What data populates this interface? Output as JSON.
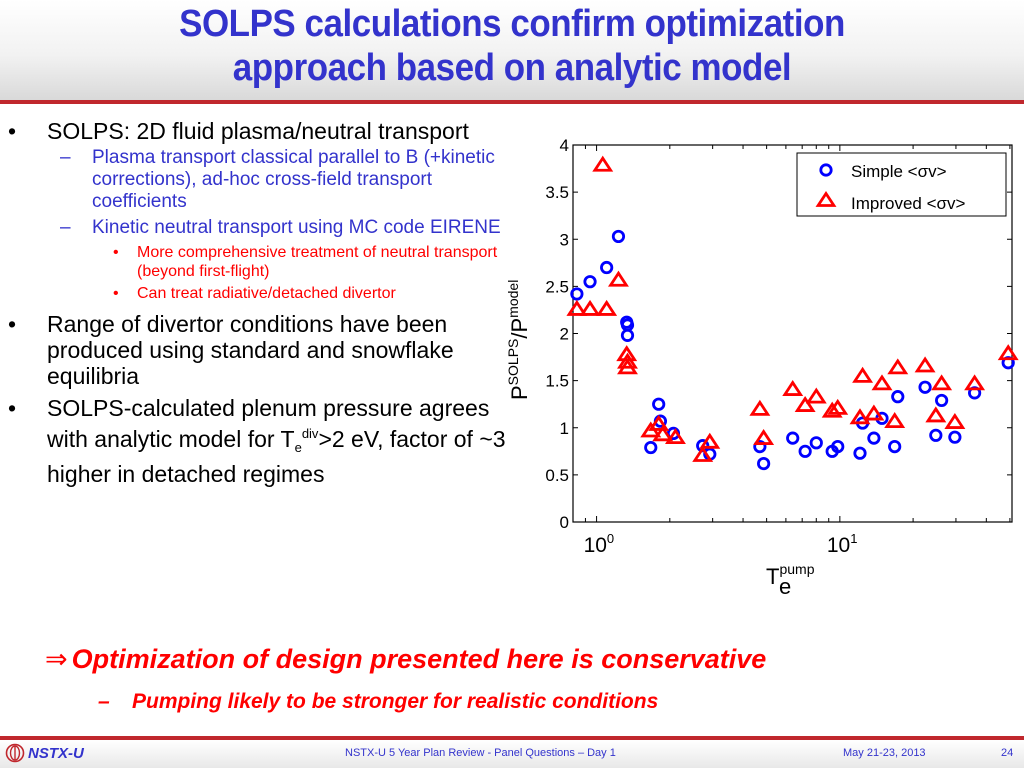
{
  "slide": {
    "title_line1": "SOLPS calculations confirm optimization",
    "title_line2": "approach based on analytic model",
    "bullets": [
      {
        "level": 1,
        "mark": "•",
        "text": "SOLPS: 2D fluid plasma/neutral transport"
      },
      {
        "level": 2,
        "mark": "–",
        "text": "Plasma transport classical parallel to B (+kinetic corrections), ad-hoc cross-field transport coefficients"
      },
      {
        "level": 2,
        "mark": "–",
        "text": "Kinetic neutral transport using MC code EIRENE"
      },
      {
        "level": 3,
        "mark": "•",
        "text": "More comprehensive treatment of neutral transport (beyond first-flight)"
      },
      {
        "level": 3,
        "mark": "•",
        "text": "Can treat radiative/detached divertor"
      },
      {
        "level": 1,
        "mark": "•",
        "text": "Range of divertor conditions have been produced using standard and snowflake equilibria"
      }
    ],
    "last_bullet": {
      "mark": "•",
      "text_before": "SOLPS-calculated plenum pressure agrees with analytic model for T",
      "sub": "e",
      "sup": "div",
      "text_after": ">2 eV, factor of ~3 higher in detached regimes"
    },
    "conclusion_arrow": "⇒",
    "conclusion": "Optimization of design presented here is conservative",
    "subconclusion_mark": "–",
    "subconclusion": "Pumping likely to be stronger for realistic conditions"
  },
  "footer": {
    "logo_text": "NSTX-U",
    "center": "NSTX-U 5 Year Plan Review  - Panel Questions – Day 1",
    "date": "May 21-23, 2013",
    "page": "24"
  },
  "colors": {
    "title_blue": "#3333cc",
    "accent_red": "#c0272d",
    "simple_series": "#0000ff",
    "improved_series": "#ff0000"
  },
  "chart_data": {
    "type": "scatter",
    "title": "",
    "xlabel": "T",
    "xlabel_sub": "e",
    "xlabel_sup": "pump",
    "ylabel": "P",
    "ylabel_sup1": "SOLPS",
    "ylabel_mid": "/P",
    "ylabel_sup2": "model",
    "xscale": "log",
    "xlim": [
      0.8,
      51
    ],
    "ylim": [
      0,
      4
    ],
    "xticks": [
      {
        "value": 1,
        "base": "10",
        "exp": "0"
      },
      {
        "value": 10,
        "base": "10",
        "exp": "1"
      }
    ],
    "yticks": [
      "0",
      "0.5",
      "1",
      "1.5",
      "2",
      "2.5",
      "3",
      "3.5",
      "4"
    ],
    "grid": false,
    "legend_position": "top-right",
    "series": [
      {
        "name": "Simple <σv>",
        "marker": "circle",
        "color": "#0000ff",
        "x": [
          0.83,
          0.94,
          1.1,
          1.23,
          1.33,
          1.34,
          1.34,
          1.67,
          1.8,
          1.83,
          2.07,
          2.73,
          2.92,
          4.69,
          4.86,
          6.4,
          7.2,
          8.0,
          9.3,
          9.8,
          12.1,
          12.4,
          13.8,
          14.9,
          16.8,
          17.3,
          22.4,
          24.8,
          26.2,
          29.7,
          35.8,
          49.2
        ],
        "y": [
          2.42,
          2.55,
          2.7,
          3.03,
          2.12,
          2.09,
          1.98,
          0.79,
          1.25,
          1.07,
          0.94,
          0.81,
          0.72,
          0.8,
          0.62,
          0.89,
          0.75,
          0.84,
          0.75,
          0.8,
          0.73,
          1.05,
          0.89,
          1.1,
          0.8,
          1.33,
          1.43,
          0.92,
          1.29,
          0.9,
          1.37,
          1.69
        ]
      },
      {
        "name": "Improved <σv>",
        "marker": "triangle",
        "color": "#ff0000",
        "x": [
          0.83,
          0.94,
          1.1,
          1.06,
          1.23,
          1.33,
          1.34,
          1.34,
          1.67,
          1.8,
          1.87,
          2.11,
          2.73,
          2.92,
          4.69,
          4.86,
          6.4,
          7.2,
          8.0,
          9.3,
          9.8,
          12.1,
          12.4,
          13.8,
          14.9,
          16.8,
          17.3,
          22.4,
          24.8,
          26.2,
          29.7,
          35.8,
          49.2
        ],
        "y": [
          2.25,
          2.25,
          2.25,
          3.78,
          2.56,
          1.77,
          1.69,
          1.63,
          0.96,
          1.03,
          0.92,
          0.89,
          0.7,
          0.84,
          1.19,
          0.88,
          1.4,
          1.23,
          1.32,
          1.17,
          1.2,
          1.1,
          1.54,
          1.14,
          1.46,
          1.06,
          1.63,
          1.65,
          1.12,
          1.46,
          1.05,
          1.46,
          1.78
        ]
      }
    ]
  }
}
